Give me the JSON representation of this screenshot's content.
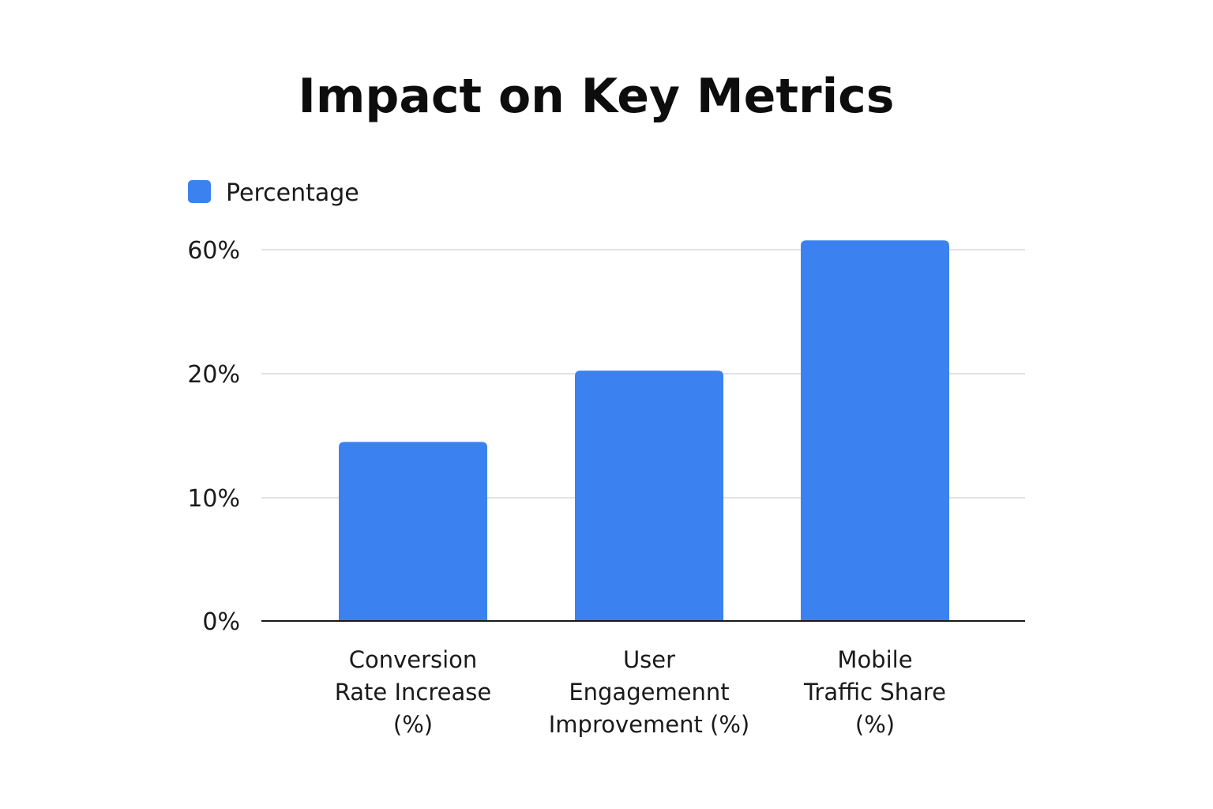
{
  "chart_data": {
    "type": "bar",
    "title": "Impact on Key Metrics",
    "xlabel": "",
    "ylabel": "",
    "categories": [
      [
        "Conversion",
        "Rate Increase",
        "(%)"
      ],
      [
        "User",
        "Engagemennt",
        "Improvement (%)"
      ],
      [
        "Mobile",
        "Traffic Share",
        "(%)"
      ]
    ],
    "series": [
      {
        "name": "Percentage",
        "color": "#3b82f0",
        "values": [
          14.5,
          21,
          63
        ]
      }
    ],
    "yticks": [
      {
        "label": "0%",
        "value": 0
      },
      {
        "label": "10%",
        "value": 10
      },
      {
        "label": "20%",
        "value": 20
      },
      {
        "label": "60%",
        "value": 60
      }
    ],
    "ylim": [
      0,
      60
    ],
    "grid": true,
    "legend_position": "top-left"
  }
}
